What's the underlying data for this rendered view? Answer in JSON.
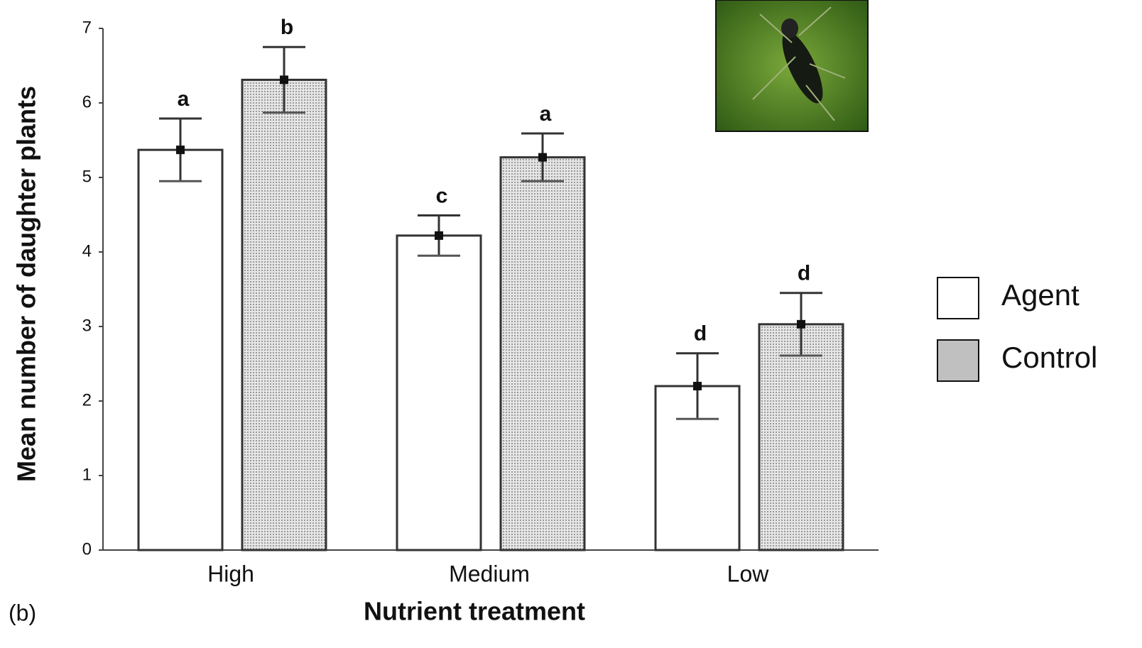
{
  "chart_data": {
    "type": "bar",
    "y_label": "Mean number of daughter plants",
    "x_label": "Nutrient treatment",
    "panel_label": "(b)",
    "categories": [
      "High",
      "Medium",
      "Low"
    ],
    "series": [
      {
        "name": "Agent",
        "color": "#ffffff",
        "values": [
          5.37,
          4.22,
          2.2
        ],
        "errors": [
          0.42,
          0.27,
          0.44
        ],
        "letters": [
          "a",
          "c",
          "d"
        ]
      },
      {
        "name": "Control",
        "color": "#c0c0c0",
        "values": [
          6.31,
          5.27,
          3.03
        ],
        "errors": [
          0.44,
          0.32,
          0.42
        ],
        "letters": [
          "b",
          "a",
          "d"
        ]
      }
    ],
    "ylim": [
      0,
      7
    ],
    "yticks": [
      0,
      1,
      2,
      3,
      4,
      5,
      6,
      7
    ],
    "grid": false
  }
}
